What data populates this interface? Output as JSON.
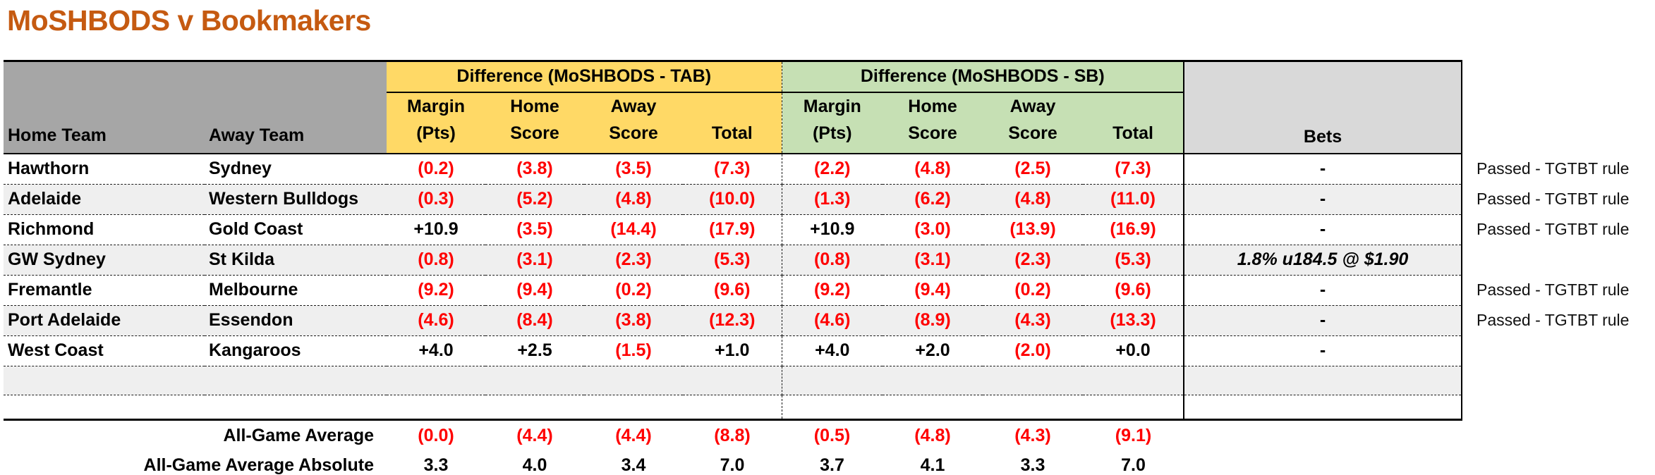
{
  "title": "MoSHBODS v Bookmakers",
  "colors": {
    "title_orange": "#C55A11",
    "tab_band_yellow": "#FFD966",
    "sb_band_green": "#C6E0B4",
    "header_gray": "#A6A6A6",
    "bets_header_gray": "#D9D9D9",
    "row_stripe": "#EFEFEF",
    "negative_red": "#FF0000"
  },
  "table": {
    "header": {
      "home_team": "Home Team",
      "away_team": "Away Team",
      "tab_group": "Difference (MoSHBODS - TAB)",
      "sb_group": "Difference (MoSHBODS - SB)",
      "bets": "Bets",
      "sub": [
        {
          "l1": "Margin",
          "l2": "(Pts)"
        },
        {
          "l1": "Home",
          "l2": "Score"
        },
        {
          "l1": "Away",
          "l2": "Score"
        },
        {
          "l1": "",
          "l2": "Total"
        }
      ]
    },
    "rows": [
      {
        "home": "Hawthorn",
        "away": "Sydney",
        "tab": [
          "(0.2)",
          "(3.8)",
          "(3.5)",
          "(7.3)"
        ],
        "sb": [
          "(2.2)",
          "(4.8)",
          "(2.5)",
          "(7.3)"
        ],
        "bet": "-",
        "note": "Passed - TGTBT rule"
      },
      {
        "home": "Adelaide",
        "away": "Western Bulldogs",
        "tab": [
          "(0.3)",
          "(5.2)",
          "(4.8)",
          "(10.0)"
        ],
        "sb": [
          "(1.3)",
          "(6.2)",
          "(4.8)",
          "(11.0)"
        ],
        "bet": "-",
        "note": "Passed - TGTBT rule"
      },
      {
        "home": "Richmond",
        "away": "Gold Coast",
        "tab": [
          "+10.9",
          "(3.5)",
          "(14.4)",
          "(17.9)"
        ],
        "sb": [
          "+10.9",
          "(3.0)",
          "(13.9)",
          "(16.9)"
        ],
        "bet": "-",
        "note": "Passed - TGTBT rule"
      },
      {
        "home": "GW Sydney",
        "away": "St Kilda",
        "tab": [
          "(0.8)",
          "(3.1)",
          "(2.3)",
          "(5.3)"
        ],
        "sb": [
          "(0.8)",
          "(3.1)",
          "(2.3)",
          "(5.3)"
        ],
        "bet": "1.8% u184.5 @ $1.90",
        "note": ""
      },
      {
        "home": "Fremantle",
        "away": "Melbourne",
        "tab": [
          "(9.2)",
          "(9.4)",
          "(0.2)",
          "(9.6)"
        ],
        "sb": [
          "(9.2)",
          "(9.4)",
          "(0.2)",
          "(9.6)"
        ],
        "bet": "-",
        "note": "Passed - TGTBT rule"
      },
      {
        "home": "Port Adelaide",
        "away": "Essendon",
        "tab": [
          "(4.6)",
          "(8.4)",
          "(3.8)",
          "(12.3)"
        ],
        "sb": [
          "(4.6)",
          "(8.9)",
          "(4.3)",
          "(13.3)"
        ],
        "bet": "-",
        "note": "Passed - TGTBT rule"
      },
      {
        "home": "West Coast",
        "away": "Kangaroos",
        "tab": [
          "+4.0",
          "+2.5",
          "(1.5)",
          "+1.0"
        ],
        "sb": [
          "+4.0",
          "+2.0",
          "(2.0)",
          "+0.0"
        ],
        "bet": "-",
        "note": ""
      }
    ],
    "empty_rows": 2,
    "footer": {
      "average": {
        "label": "All-Game Average",
        "tab": [
          "(0.0)",
          "(4.4)",
          "(4.4)",
          "(8.8)"
        ],
        "sb": [
          "(0.5)",
          "(4.8)",
          "(4.3)",
          "(9.1)"
        ]
      },
      "absolute": {
        "label": "All-Game Average Absolute",
        "tab": [
          "3.3",
          "4.0",
          "3.4",
          "7.0"
        ],
        "sb": [
          "3.7",
          "4.1",
          "3.3",
          "7.0"
        ]
      }
    }
  }
}
